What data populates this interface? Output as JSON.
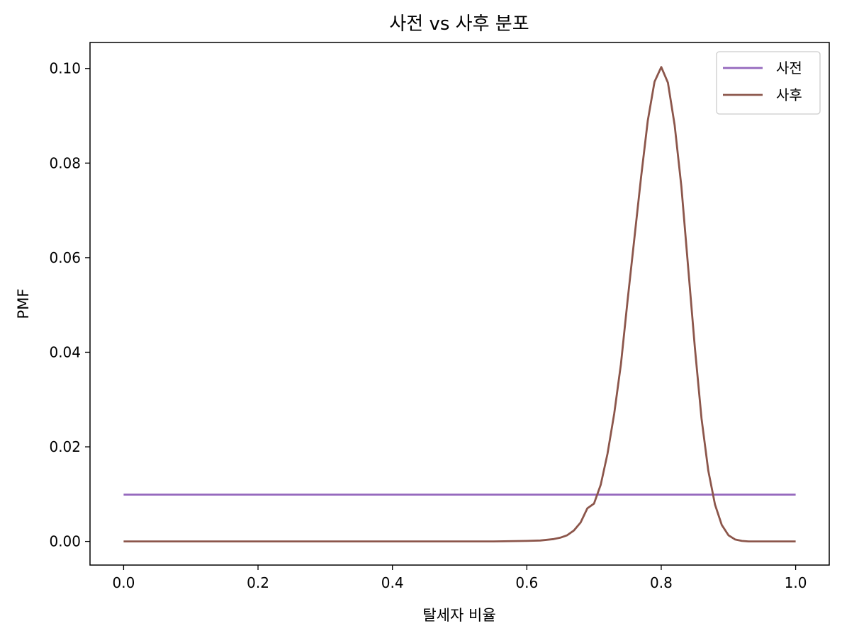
{
  "chart_data": {
    "type": "line",
    "title": "사전 vs 사후 분포",
    "xlabel": "탈세자 비율",
    "ylabel": "PMF",
    "xlim": [
      -0.05,
      1.05
    ],
    "ylim": [
      -0.005,
      0.1055
    ],
    "xticks": [
      "0.0",
      "0.2",
      "0.4",
      "0.6",
      "0.8",
      "1.0"
    ],
    "yticks": [
      "0.00",
      "0.02",
      "0.04",
      "0.06",
      "0.08",
      "0.10"
    ],
    "grid": false,
    "legend_position": "top-right",
    "series": [
      {
        "name": "사전",
        "color": "#9467bd",
        "x": [
          0.0,
          1.0
        ],
        "y": [
          0.0099,
          0.0099
        ]
      },
      {
        "name": "사후",
        "color": "#8c564b",
        "x": [
          0.0,
          0.55,
          0.6,
          0.62,
          0.64,
          0.65,
          0.66,
          0.67,
          0.68,
          0.69,
          0.7,
          0.71,
          0.72,
          0.73,
          0.74,
          0.75,
          0.76,
          0.77,
          0.78,
          0.79,
          0.8,
          0.81,
          0.82,
          0.83,
          0.84,
          0.85,
          0.86,
          0.87,
          0.88,
          0.89,
          0.9,
          0.91,
          0.92,
          0.93,
          0.95,
          1.0
        ],
        "y": [
          0.0,
          0.0,
          0.0001,
          0.0002,
          0.0005,
          0.0008,
          0.0013,
          0.0023,
          0.004,
          0.007,
          0.008,
          0.012,
          0.0185,
          0.027,
          0.0375,
          0.051,
          0.064,
          0.077,
          0.089,
          0.0972,
          0.1003,
          0.097,
          0.088,
          0.075,
          0.058,
          0.041,
          0.026,
          0.015,
          0.0078,
          0.0035,
          0.0013,
          0.0004,
          0.0001,
          0.0,
          0.0,
          0.0
        ]
      }
    ]
  }
}
